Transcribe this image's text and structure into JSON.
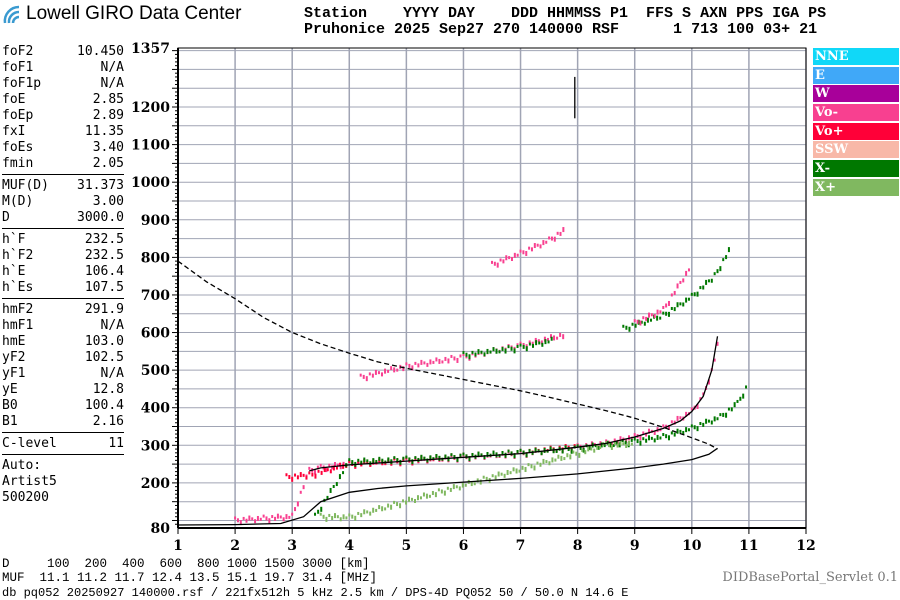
{
  "header": {
    "logo_text": "Lowell GIRO Data Center",
    "labels_line": "Station    YYYY DAY    DDD HHMMSS P1  FFS S AXN PPS IGA PS",
    "values_line": "Pruhonice 2025 Sep27 270 140000 RSF      1 713 100 03+ 21"
  },
  "params": [
    [
      {
        "k": "foF2",
        "v": "10.450"
      },
      {
        "k": "foF1",
        "v": "N/A"
      },
      {
        "k": "foF1p",
        "v": "N/A"
      },
      {
        "k": "foE",
        "v": "2.85"
      },
      {
        "k": "foEp",
        "v": "2.89"
      },
      {
        "k": "fxI",
        "v": "11.35"
      },
      {
        "k": "foEs",
        "v": "3.40"
      },
      {
        "k": "fmin",
        "v": "2.05"
      }
    ],
    [
      {
        "k": "MUF(D)",
        "v": "31.373"
      },
      {
        "k": "M(D)",
        "v": "3.00"
      },
      {
        "k": "D",
        "v": "3000.0"
      }
    ],
    [
      {
        "k": "h`F",
        "v": "232.5"
      },
      {
        "k": "h`F2",
        "v": "232.5"
      },
      {
        "k": "h`E",
        "v": "106.4"
      },
      {
        "k": "h`Es",
        "v": "107.5"
      }
    ],
    [
      {
        "k": "hmF2",
        "v": "291.9"
      },
      {
        "k": "hmF1",
        "v": "N/A"
      },
      {
        "k": "hmE",
        "v": "103.0"
      },
      {
        "k": "yF2",
        "v": "102.5"
      },
      {
        "k": "yF1",
        "v": "N/A"
      },
      {
        "k": "yE",
        "v": "12.8"
      },
      {
        "k": "B0",
        "v": "100.4"
      },
      {
        "k": "B1",
        "v": "2.16"
      }
    ],
    [
      {
        "k": "C-level",
        "v": "11"
      }
    ]
  ],
  "auto": {
    "line1": "Auto:",
    "line2": "Artist5",
    "line3": "500200"
  },
  "legend": [
    {
      "label": "NNE",
      "color": "#10d8f8"
    },
    {
      "label": "E",
      "color": "#40a8f8"
    },
    {
      "label": "W",
      "color": "#a8009a"
    },
    {
      "label": "Vo-",
      "color": "#f84090"
    },
    {
      "label": "Vo+",
      "color": "#ff0038"
    },
    {
      "label": "SSW",
      "color": "#f8b8a8"
    },
    {
      "label": "X-",
      "color": "#007800"
    },
    {
      "label": "X+",
      "color": "#80b860"
    }
  ],
  "chart_data": {
    "type": "scatter",
    "xlim": [
      1,
      12
    ],
    "ylim": [
      80,
      1357
    ],
    "x_ticks": [
      "1",
      "2",
      "3",
      "4",
      "5",
      "6",
      "7",
      "8",
      "9",
      "10",
      "11",
      "12"
    ],
    "y_ticks": [
      "1357",
      "1200",
      "1100",
      "1000",
      "900",
      "800",
      "700",
      "600",
      "500",
      "400",
      "300",
      "200",
      "80"
    ],
    "grid": true,
    "legend_placement": "right",
    "lines": [
      {
        "style": "dashed",
        "x": [
          1,
          1.5,
          2,
          2.5,
          3,
          3.5,
          4,
          4.5,
          5,
          5.5,
          6,
          6.5,
          7,
          7.5,
          8,
          8.5,
          9,
          9.5,
          10,
          10.3,
          10.45
        ],
        "y": [
          790,
          735,
          690,
          640,
          600,
          570,
          545,
          522,
          505,
          490,
          475,
          460,
          445,
          428,
          410,
          392,
          372,
          348,
          320,
          303,
          290
        ]
      },
      {
        "style": "solid",
        "x": [
          1,
          2,
          2.8,
          3.2,
          3.5,
          4,
          4.5,
          5,
          6,
          7,
          8,
          9,
          9.5,
          10,
          10.3,
          10.45
        ],
        "y": [
          88,
          89,
          92,
          110,
          150,
          175,
          185,
          192,
          202,
          212,
          224,
          240,
          250,
          262,
          276,
          292
        ]
      },
      {
        "style": "solid",
        "x": [
          3.3,
          3.5,
          4,
          5,
          6,
          7,
          8,
          8.5,
          9,
          9.5,
          9.8,
          10,
          10.2,
          10.35,
          10.45
        ],
        "y": [
          232,
          240,
          248,
          258,
          268,
          278,
          295,
          305,
          322,
          345,
          365,
          390,
          430,
          500,
          590
        ]
      },
      {
        "style": "solid",
        "x": [
          7.95,
          7.95
        ],
        "y": [
          1170,
          1280
        ]
      }
    ],
    "traces": [
      {
        "color": "#f84090",
        "x": [
          2,
          2.5,
          3,
          3.3,
          3.5,
          4,
          5,
          6,
          7,
          8,
          8.5,
          9,
          9.5,
          10,
          10.2,
          10.4,
          10.5
        ],
        "y": [
          100,
          105,
          110,
          232,
          240,
          250,
          258,
          268,
          278,
          295,
          305,
          322,
          345,
          390,
          430,
          520,
          620
        ]
      },
      {
        "color": "#ff0038",
        "x": [
          2.9,
          3.3,
          4,
          5,
          6,
          7,
          8
        ],
        "y": [
          215,
          220,
          250,
          260,
          270,
          280,
          296
        ]
      },
      {
        "color": "#007800",
        "x": [
          3.4,
          4,
          5,
          6,
          7,
          8,
          9,
          9.5,
          10,
          10.5,
          10.8,
          11
        ],
        "y": [
          110,
          255,
          262,
          270,
          280,
          292,
          310,
          322,
          345,
          375,
          410,
          465
        ]
      },
      {
        "color": "#80b860",
        "x": [
          3.5,
          4,
          8.5,
          9
        ],
        "y": [
          110,
          108,
          300,
          305
        ]
      },
      {
        "color": "#f84090",
        "x": [
          4.2,
          5,
          6,
          7,
          7.8
        ],
        "y": [
          480,
          510,
          535,
          565,
          595
        ]
      },
      {
        "color": "#f84090",
        "x": [
          6.5,
          7,
          7.5,
          7.8
        ],
        "y": [
          780,
          810,
          845,
          875
        ]
      },
      {
        "color": "#007800",
        "x": [
          6,
          7,
          7.6
        ],
        "y": [
          540,
          560,
          580
        ]
      },
      {
        "color": "#007800",
        "x": [
          8.8,
          9.5,
          10,
          10.4,
          10.7
        ],
        "y": [
          610,
          645,
          695,
          750,
          830
        ]
      },
      {
        "color": "#f84090",
        "x": [
          9,
          9.5,
          10
        ],
        "y": [
          625,
          660,
          780
        ]
      }
    ]
  },
  "footer": {
    "d_line": "D     100  200  400  600  800 1000 1500 3000 [km]",
    "muf_line": "MUF  11.1 11.2 11.7 12.4 13.5 15.1 19.7 31.4 [MHz]",
    "db_line": "db pq052 20250927 140000.rsf / 221fx512h 5 kHz 2.5 km / DPS-4D PQ052 50 / 50.0 N 14.6 E",
    "servlet": "DIDBasePortal_Servlet 0.1"
  }
}
